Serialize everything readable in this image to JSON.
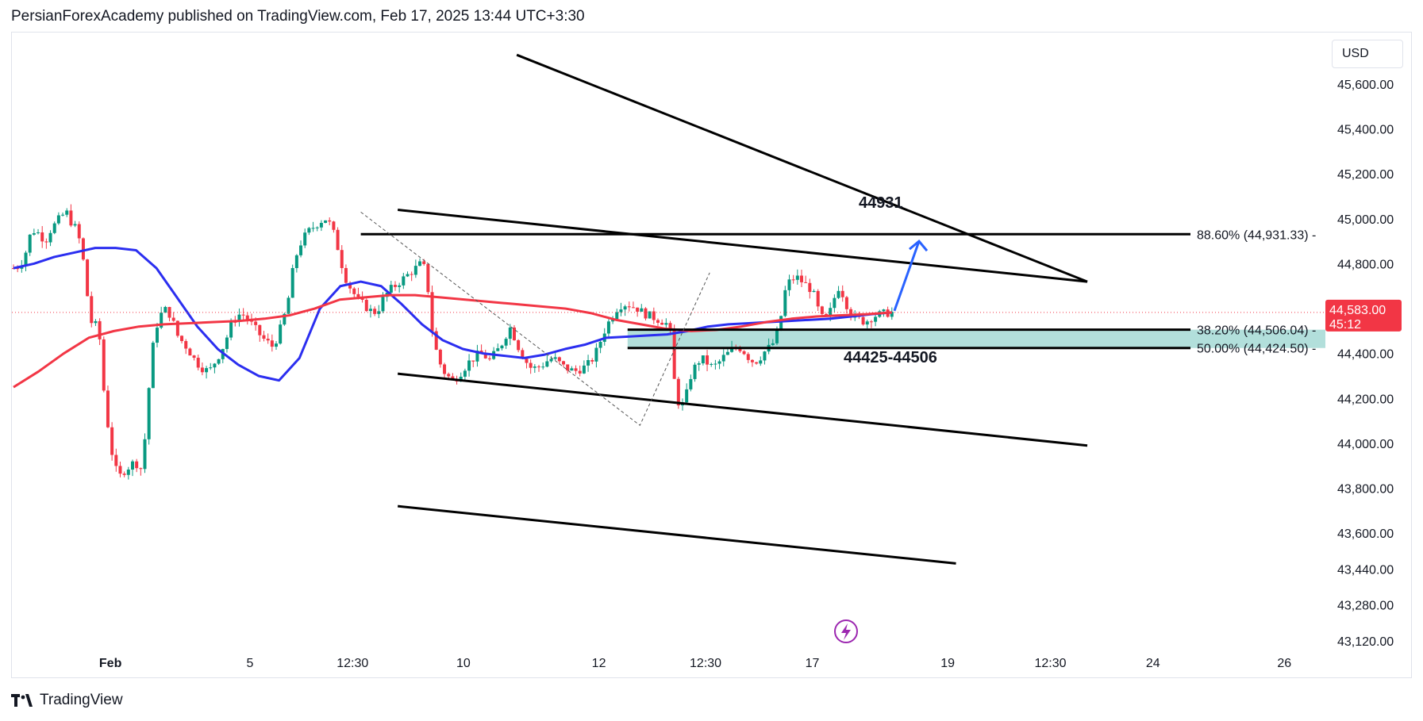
{
  "header": {
    "publisher_line": "PersianForexAcademy published on TradingView.com, Feb 17, 2025 13:44 UTC+3:30"
  },
  "footer": {
    "brand": "TradingView"
  },
  "toolbar": {
    "currency": "USD"
  },
  "colors": {
    "up": "#089981",
    "down": "#f23645",
    "ma_fast": "#2b2ef0",
    "ma_slow": "#f23645",
    "zone": "#b2dfdb",
    "lines": "#000000",
    "arrow": "#2962ff",
    "lightning": "#9c27b0"
  },
  "chart_data": {
    "type": "candlestick",
    "symbol_currency": "USD",
    "ylim": [
      43000,
      45850
    ],
    "y_ticks": [
      "45,600.00",
      "45,400.00",
      "45,200.00",
      "45,000.00",
      "44,800.00",
      "44,400.00",
      "44,200.00",
      "44,000.00",
      "43,800.00",
      "43,600.00",
      "43,440.00",
      "43,280.00",
      "43,120.00"
    ],
    "y_tick_values": [
      45600,
      45400,
      45200,
      45000,
      44800,
      44400,
      44200,
      44000,
      43800,
      43600,
      43440,
      43280,
      43120
    ],
    "x_ticks": [
      "Feb",
      "5",
      "12:30",
      "10",
      "12",
      "12:30",
      "17",
      "19",
      "12:30",
      "24",
      "26"
    ],
    "x_tick_bars": [
      24,
      58,
      83,
      110,
      143,
      169,
      195,
      228,
      253,
      278,
      310
    ],
    "bars_visible": 320,
    "price_series": [
      44780,
      44790,
      44820,
      44920,
      44950,
      44930,
      44900,
      44950,
      44980,
      45010,
      45030,
      44980,
      44950,
      44850,
      44650,
      44500,
      44550,
      44250,
      44050,
      43900,
      43850,
      43880,
      43900,
      43920,
      43880,
      44050,
      44380,
      44520,
      44580,
      44600,
      44550,
      44480,
      44450,
      44420,
      44380,
      44350,
      44330,
      44320,
      44360,
      44400,
      44450,
      44520,
      44560,
      44580,
      44560,
      44530,
      44500,
      44470,
      44450,
      44430,
      44480,
      44550,
      44650,
      44800,
      44880,
      44920,
      44950,
      44970,
      44990,
      45000,
      44970,
      44900,
      44800,
      44720,
      44680,
      44640,
      44620,
      44600,
      44580,
      44600,
      44650,
      44680,
      44700,
      44720,
      44740,
      44760,
      44780,
      44800,
      44770,
      44520,
      44400,
      44330,
      44300,
      44280,
      44300,
      44330,
      44360,
      44380,
      44400,
      44390,
      44370,
      44400,
      44430,
      44480,
      44520,
      44450,
      44400,
      44360,
      44330,
      44340,
      44350,
      44370,
      44380,
      44360,
      44340,
      44330,
      44320,
      44330,
      44340,
      44360,
      44400,
      44460,
      44520,
      44560,
      44600,
      44620,
      44620,
      44610,
      44600,
      44580,
      44570,
      44560,
      44550,
      44540,
      44520,
      44250,
      44150,
      44200,
      44300,
      44350,
      44380,
      44360,
      44340,
      44350,
      44380,
      44400,
      44420,
      44430,
      44410,
      44380,
      44360,
      44380,
      44410,
      44430,
      44460,
      44560,
      44700,
      44730,
      44740,
      44720,
      44700,
      44680,
      44600,
      44550,
      44560,
      44640,
      44700,
      44650,
      44580,
      44560,
      44550,
      44540,
      44560,
      44570,
      44575,
      44580,
      44583
    ],
    "moving_averages": [
      {
        "color": "#2b2ef0",
        "values": [
          44780,
          44800,
          44830,
          44850,
          44870,
          44870,
          44860,
          44780,
          44650,
          44520,
          44420,
          44350,
          44300,
          44280,
          44380,
          44600,
          44700,
          44720,
          44700,
          44620,
          44530,
          44460,
          44420,
          44400,
          44390,
          44380,
          44395,
          44420,
          44440,
          44470,
          44475,
          44480,
          44485,
          44500,
          44520,
          44530,
          44535,
          44540,
          44545,
          44550,
          44555,
          44565,
          44575,
          44583
        ]
      },
      {
        "color": "#f23645",
        "values": [
          44250,
          44320,
          44400,
          44470,
          44500,
          44520,
          44530,
          44535,
          44540,
          44545,
          44555,
          44570,
          44600,
          44640,
          44650,
          44660,
          44660,
          44650,
          44640,
          44630,
          44620,
          44610,
          44600,
          44580,
          44550,
          44530,
          44510,
          44500,
          44505,
          44520,
          44540,
          44555,
          44565,
          44570,
          44575,
          44583
        ]
      }
    ],
    "fib_levels": [
      {
        "label": "88.60% (44,931.33)",
        "value": 44931.33
      },
      {
        "label": "38.20% (44,506.04)",
        "value": 44506.04
      },
      {
        "label": "50.00% (44,424.50)",
        "value": 44424.5
      }
    ],
    "zone": {
      "low": 44424.5,
      "high": 44506.04
    },
    "channel_lines": [
      {
        "from": [
          94,
          45040
        ],
        "to": [
          262,
          44720
        ]
      },
      {
        "from": [
          123,
          45730
        ],
        "to": [
          262,
          44720
        ]
      },
      {
        "from": [
          94,
          44310
        ],
        "to": [
          262,
          43990
        ]
      },
      {
        "from": [
          94,
          43720
        ],
        "to": [
          230,
          43465
        ]
      }
    ],
    "annotations": [
      "44931",
      "44425-44506"
    ],
    "last_price": {
      "value": "44,583.00",
      "countdown": "45:12"
    }
  }
}
